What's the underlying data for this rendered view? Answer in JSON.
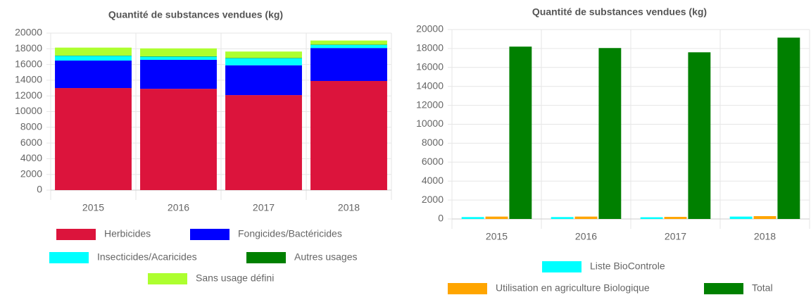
{
  "chart_data": [
    {
      "type": "stacked_bar",
      "title": "Quantité de substances vendues (kg)",
      "categories": [
        "2015",
        "2016",
        "2017",
        "2018"
      ],
      "series": [
        {
          "name": "Herbicides",
          "color": "#dc143c",
          "values": [
            13000,
            12900,
            12100,
            13900
          ]
        },
        {
          "name": "Fongicides/Bactéricides",
          "color": "#0000ff",
          "values": [
            3500,
            3700,
            3800,
            4200
          ]
        },
        {
          "name": "Insecticides/Acaricides",
          "color": "#00ffff",
          "values": [
            600,
            400,
            900,
            400
          ]
        },
        {
          "name": "Autres usages",
          "color": "#008000",
          "values": [
            50,
            50,
            50,
            50
          ]
        },
        {
          "name": "Sans usage défini",
          "color": "#adff2f",
          "values": [
            1000,
            1000,
            800,
            500
          ]
        }
      ],
      "ylim": [
        0,
        20000
      ],
      "yticks": [
        0,
        2000,
        4000,
        6000,
        8000,
        10000,
        12000,
        14000,
        16000,
        18000,
        20000
      ],
      "grid": true
    },
    {
      "type": "bar",
      "title": "Quantité de substances vendues (kg)",
      "categories": [
        "2015",
        "2016",
        "2017",
        "2018"
      ],
      "series": [
        {
          "name": "Liste BioControle",
          "color": "#00ffff",
          "values": [
            200,
            200,
            180,
            250
          ]
        },
        {
          "name": "Utilisation en agriculture Biologique",
          "color": "#ffa500",
          "values": [
            250,
            250,
            220,
            300
          ]
        },
        {
          "name": "Total",
          "color": "#008000",
          "values": [
            18200,
            18050,
            17600,
            19150
          ]
        }
      ],
      "ylim": [
        0,
        20000
      ],
      "yticks": [
        0,
        2000,
        4000,
        6000,
        8000,
        10000,
        12000,
        14000,
        16000,
        18000,
        20000
      ],
      "grid": true
    }
  ]
}
